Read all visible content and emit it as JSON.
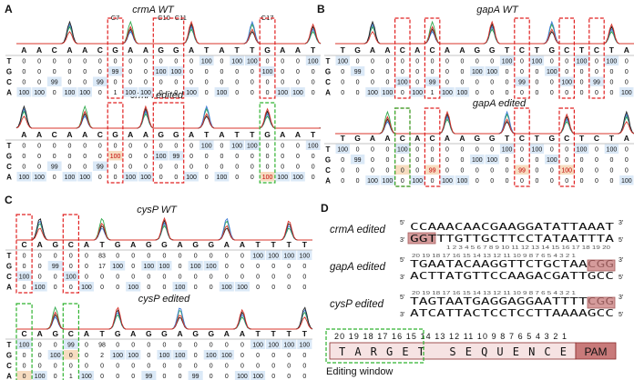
{
  "panels": [
    {
      "id": "A",
      "letter": "A",
      "top_title": "crmA WT",
      "bottom_title": "crmA edited",
      "markers": [
        "C7",
        "C10",
        "C11",
        "C17"
      ],
      "columns": [
        "A",
        "A",
        "C",
        "A",
        "A",
        "C",
        "G",
        "A",
        "A",
        "G",
        "G",
        "A",
        "T",
        "A",
        "T",
        "T",
        "G",
        "A",
        "A",
        "T"
      ],
      "row_labels": [
        "T",
        "G",
        "C",
        "A"
      ],
      "top_rows": [
        [
          "0",
          "0",
          "0",
          "0",
          "0",
          "0",
          "0",
          "0",
          "0",
          "0",
          "0",
          "0",
          "100",
          "0",
          "100",
          "100",
          "0",
          "0",
          "0",
          "100"
        ],
        [
          "0",
          "0",
          "0",
          "0",
          "0",
          "0",
          "99",
          "0",
          "0",
          "100",
          "100",
          "0",
          "0",
          "0",
          "0",
          "0",
          "100",
          "0",
          "0",
          "0"
        ],
        [
          "0",
          "0",
          "99",
          "0",
          "0",
          "99",
          "0",
          "0",
          "0",
          "0",
          "0",
          "0",
          "0",
          "0",
          "0",
          "0",
          "0",
          "0",
          "0",
          "0"
        ],
        [
          "100",
          "100",
          "0",
          "100",
          "100",
          "0",
          "1",
          "100",
          "100",
          "0",
          "0",
          "100",
          "0",
          "100",
          "0",
          "0",
          "0",
          "100",
          "100",
          "0"
        ]
      ],
      "bottom_rows": [
        [
          "0",
          "0",
          "0",
          "0",
          "0",
          "0",
          "0",
          "0",
          "0",
          "0",
          "0",
          "0",
          "100",
          "0",
          "100",
          "100",
          "0",
          "0",
          "0",
          "100"
        ],
        [
          "0",
          "0",
          "0",
          "0",
          "0",
          "0",
          "100",
          "0",
          "0",
          "100",
          "99",
          "0",
          "0",
          "0",
          "0",
          "0",
          "0",
          "0",
          "0",
          "0"
        ],
        [
          "0",
          "0",
          "99",
          "0",
          "0",
          "99",
          "0",
          "0",
          "0",
          "0",
          "0",
          "0",
          "0",
          "0",
          "0",
          "0",
          "0",
          "0",
          "0",
          "0"
        ],
        [
          "100",
          "100",
          "0",
          "100",
          "100",
          "0",
          "0",
          "100",
          "100",
          "0",
          "0",
          "100",
          "0",
          "100",
          "0",
          "0",
          "100",
          "100",
          "100",
          "0"
        ]
      ]
    },
    {
      "id": "B",
      "letter": "B",
      "top_title": "gapA WT",
      "bottom_title": "gapA edited",
      "columns": [
        "T",
        "G",
        "A",
        "A",
        "C",
        "A",
        "C",
        "A",
        "A",
        "G",
        "G",
        "T",
        "C",
        "T",
        "G",
        "C",
        "T",
        "C",
        "T",
        "A"
      ],
      "row_labels": [
        "T",
        "G",
        "C",
        "A"
      ],
      "top_rows": [
        [
          "100",
          "0",
          "0",
          "0",
          "0",
          "0",
          "0",
          "0",
          "0",
          "0",
          "0",
          "100",
          "0",
          "100",
          "0",
          "0",
          "100",
          "0",
          "100",
          "0"
        ],
        [
          "0",
          "99",
          "0",
          "0",
          "0",
          "0",
          "0",
          "0",
          "0",
          "100",
          "100",
          "0",
          "0",
          "0",
          "100",
          "0",
          "0",
          "0",
          "0",
          "0"
        ],
        [
          "0",
          "0",
          "0",
          "0",
          "100",
          "0",
          "99",
          "0",
          "0",
          "0",
          "0",
          "0",
          "99",
          "0",
          "0",
          "100",
          "0",
          "99",
          "0",
          "0"
        ],
        [
          "0",
          "0",
          "100",
          "100",
          "0",
          "100",
          "1",
          "100",
          "100",
          "0",
          "0",
          "0",
          "0",
          "0",
          "0",
          "0",
          "0",
          "0",
          "0",
          "100"
        ]
      ],
      "bottom_rows": [
        [
          "100",
          "0",
          "0",
          "0",
          "100",
          "0",
          "0",
          "0",
          "0",
          "0",
          "0",
          "100",
          "0",
          "100",
          "0",
          "0",
          "100",
          "0",
          "100",
          "0"
        ],
        [
          "0",
          "99",
          "0",
          "0",
          "0",
          "0",
          "0",
          "0",
          "0",
          "100",
          "100",
          "0",
          "0",
          "0",
          "100",
          "0",
          "0",
          "0",
          "0",
          "0"
        ],
        [
          "0",
          "0",
          "0",
          "0",
          "0",
          "0",
          "99",
          "0",
          "0",
          "0",
          "0",
          "0",
          "99",
          "0",
          "0",
          "100",
          "0",
          "0",
          "0",
          "0"
        ],
        [
          "0",
          "0",
          "100",
          "100",
          "0",
          "100",
          "0",
          "100",
          "100",
          "0",
          "0",
          "0",
          "0",
          "0",
          "0",
          "0",
          "0",
          "0",
          "0",
          "100"
        ]
      ]
    },
    {
      "id": "C",
      "letter": "C",
      "top_title": "cysP WT",
      "bottom_title": "cysP edited",
      "columns": [
        "C",
        "A",
        "G",
        "C",
        "A",
        "T",
        "G",
        "A",
        "G",
        "G",
        "A",
        "G",
        "G",
        "A",
        "A",
        "T",
        "T",
        "T",
        "T"
      ],
      "row_labels": [
        "T",
        "G",
        "C",
        "A"
      ],
      "top_rows": [
        [
          "0",
          "0",
          "0",
          "0",
          "0",
          "83",
          "0",
          "0",
          "0",
          "0",
          "0",
          "0",
          "0",
          "0",
          "0",
          "100",
          "100",
          "100",
          "100"
        ],
        [
          "0",
          "0",
          "99",
          "0",
          "0",
          "17",
          "100",
          "0",
          "100",
          "100",
          "0",
          "100",
          "100",
          "0",
          "0",
          "0",
          "0",
          "0",
          "0"
        ],
        [
          "100",
          "0",
          "0",
          "100",
          "0",
          "0",
          "0",
          "0",
          "0",
          "0",
          "0",
          "0",
          "0",
          "0",
          "0",
          "0",
          "0",
          "0",
          "0"
        ],
        [
          "0",
          "100",
          "0",
          "0",
          "100",
          "0",
          "0",
          "100",
          "0",
          "0",
          "100",
          "0",
          "0",
          "100",
          "100",
          "0",
          "0",
          "0",
          "0"
        ]
      ],
      "bottom_rows": [
        [
          "100",
          "0",
          "0",
          "99",
          "0",
          "98",
          "0",
          "0",
          "0",
          "0",
          "0",
          "0",
          "0",
          "0",
          "0",
          "100",
          "100",
          "100",
          "100"
        ],
        [
          "0",
          "0",
          "100",
          "0",
          "0",
          "2",
          "100",
          "100",
          "0",
          "100",
          "100",
          "0",
          "100",
          "100",
          "0",
          "0",
          "0",
          "0",
          "0"
        ],
        [
          "0",
          "0",
          "0",
          "0",
          "0",
          "0",
          "0",
          "0",
          "0",
          "0",
          "0",
          "0",
          "0",
          "0",
          "0",
          "0",
          "0",
          "0",
          "0"
        ],
        [
          "0",
          "100",
          "0",
          "1",
          "100",
          "0",
          "0",
          "0",
          "99",
          "0",
          "0",
          "99",
          "0",
          "0",
          "100",
          "100",
          "0",
          "0",
          "0"
        ]
      ]
    }
  ],
  "panel_d": {
    "letter": "D",
    "rows": [
      {
        "label": "crmA edited",
        "top_5": "5'",
        "top_3": "3'",
        "top_seq": "CCAAACAACGAAGGATATTAAAT",
        "bottom_3": "3'",
        "bottom_5": "5'",
        "bottom_seq": "GGTTTGTTGCTTCCTATAATTTA",
        "pam_text": "GGT",
        "numbers": "1 2 3 4 5 6 7 8 9 10 11 12 13 14 15 16 17 18 19 20"
      },
      {
        "label": "gapA edited",
        "top_5": "5'",
        "top_3": "3'",
        "top_seq": "TGAATACAAGGTTCTGCTAACGG",
        "bottom_3": "3'",
        "bottom_5": "5'",
        "bottom_seq": "ACTTATGTTCCAAGACGATTGCC",
        "pam_text": "CGG",
        "numbers": "20 19 18 17 16 15 14 13 12 11 10 9 8 7 6 5 4 3 2 1"
      },
      {
        "label": "cysP edited",
        "top_5": "5'",
        "top_3": "3'",
        "top_seq": "TAGTAATGAGGAGGAATTTTCGG",
        "bottom_3": "3'",
        "bottom_5": "5'",
        "bottom_seq": "ATCATTACTCCTCCTTAAAAGCC",
        "pam_text": "CGG",
        "numbers": "20 19 18 17 16 15 14 13 12 11 10 9 8 7 6 5 4 3 2 1"
      }
    ],
    "scheme": {
      "numbers": "20 19 18 17 16 15 14 13 12 11 10 9 8 7 6 5 4 3 2 1",
      "target_text": "TARGET SEQUENCE",
      "pam_label": "PAM",
      "window_label": "Editing window"
    }
  },
  "colors": {
    "red_box": "#e02020",
    "green_box": "#2fb22f",
    "cell_blue": "#dbe9f7",
    "cell_orange": "#f7dcc0",
    "pam_fill": "#c87a7a",
    "target_fill": "#f6e3e3",
    "trace_green": "#2ea84a",
    "trace_blue": "#3d7bd6",
    "trace_black": "#222222",
    "trace_red": "#d9342b"
  }
}
